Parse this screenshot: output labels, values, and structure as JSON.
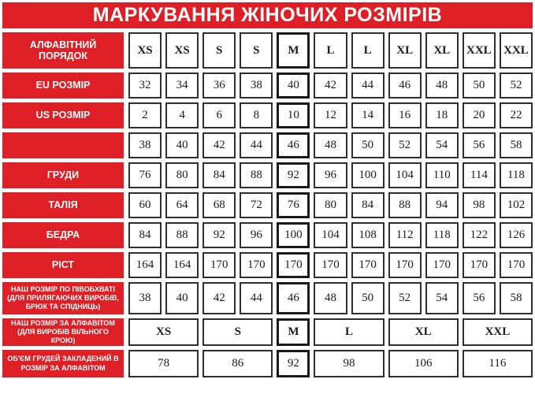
{
  "title": "МАРКУВАННЯ ЖІНОЧИХ РОЗМІРІВ",
  "colors": {
    "red": "#de2026",
    "cell_border": "#2f2f2f",
    "cell_text": "#1c1c1c",
    "title_text": "#ffffff"
  },
  "chart_data": {
    "type": "table",
    "title": "МАРКУВАННЯ ЖІНОЧИХ РОЗМІРІВ",
    "highlighted_column": "M (5th size column, thicker border)",
    "rows": [
      {
        "label": "АЛФАВІТНИЙ ПОРЯДОК",
        "cells": [
          "XS",
          "XS",
          "S",
          "S",
          "M",
          "L",
          "L",
          "XL",
          "XL",
          "XXL",
          "XXL"
        ],
        "bold": true
      },
      {
        "label": "EU РОЗМІР",
        "cells": [
          "32",
          "34",
          "36",
          "38",
          "40",
          "42",
          "44",
          "46",
          "48",
          "50",
          "52"
        ]
      },
      {
        "label": "US РОЗМІР",
        "cells": [
          "2",
          "4",
          "6",
          "8",
          "10",
          "12",
          "14",
          "16",
          "18",
          "20",
          "22"
        ]
      },
      {
        "label": "",
        "cells": [
          "38",
          "40",
          "42",
          "44",
          "46",
          "48",
          "50",
          "52",
          "54",
          "56",
          "58"
        ]
      },
      {
        "label": "ГРУДИ",
        "cells": [
          "76",
          "80",
          "84",
          "88",
          "92",
          "96",
          "100",
          "104",
          "110",
          "114",
          "118"
        ]
      },
      {
        "label": "ТАЛІЯ",
        "cells": [
          "60",
          "64",
          "68",
          "72",
          "76",
          "80",
          "84",
          "88",
          "94",
          "98",
          "102"
        ]
      },
      {
        "label": "БЕДРА",
        "cells": [
          "84",
          "88",
          "92",
          "96",
          "100",
          "104",
          "108",
          "112",
          "118",
          "122",
          "126"
        ]
      },
      {
        "label": "РІСТ",
        "cells": [
          "164",
          "164",
          "170",
          "170",
          "170",
          "170",
          "170",
          "170",
          "170",
          "170",
          "170"
        ]
      },
      {
        "label": "НАШ РОЗМІР ПО ПІВОБХВАТІ (ДЛЯ ПРИЛЯГАЮЧИХ ВИРОБІВ, БРЮК ТА СПІДНИЦЬ)",
        "cells": [
          "38",
          "40",
          "42",
          "44",
          "46",
          "48",
          "50",
          "52",
          "54",
          "56",
          "58"
        ]
      },
      {
        "label": "НАШ РОЗМІР ЗА АЛФАВІТОМ (ДЛЯ ВИРОБІВ ВІЛЬНОГО КРОЮ)",
        "cells": [
          "XS",
          "S",
          "M",
          "L",
          "XL",
          "XXL"
        ],
        "spans": [
          2,
          2,
          1,
          2,
          2,
          2
        ],
        "bold": true
      },
      {
        "label": "ОБ'ЄМ ГРУДЕЙ ЗАКЛАДЕНИЙ В РОЗМІР ЗА АЛФАВІТОМ",
        "cells": [
          "78",
          "86",
          "92",
          "98",
          "106",
          "116"
        ],
        "spans": [
          2,
          2,
          1,
          2,
          2,
          2
        ]
      }
    ]
  }
}
